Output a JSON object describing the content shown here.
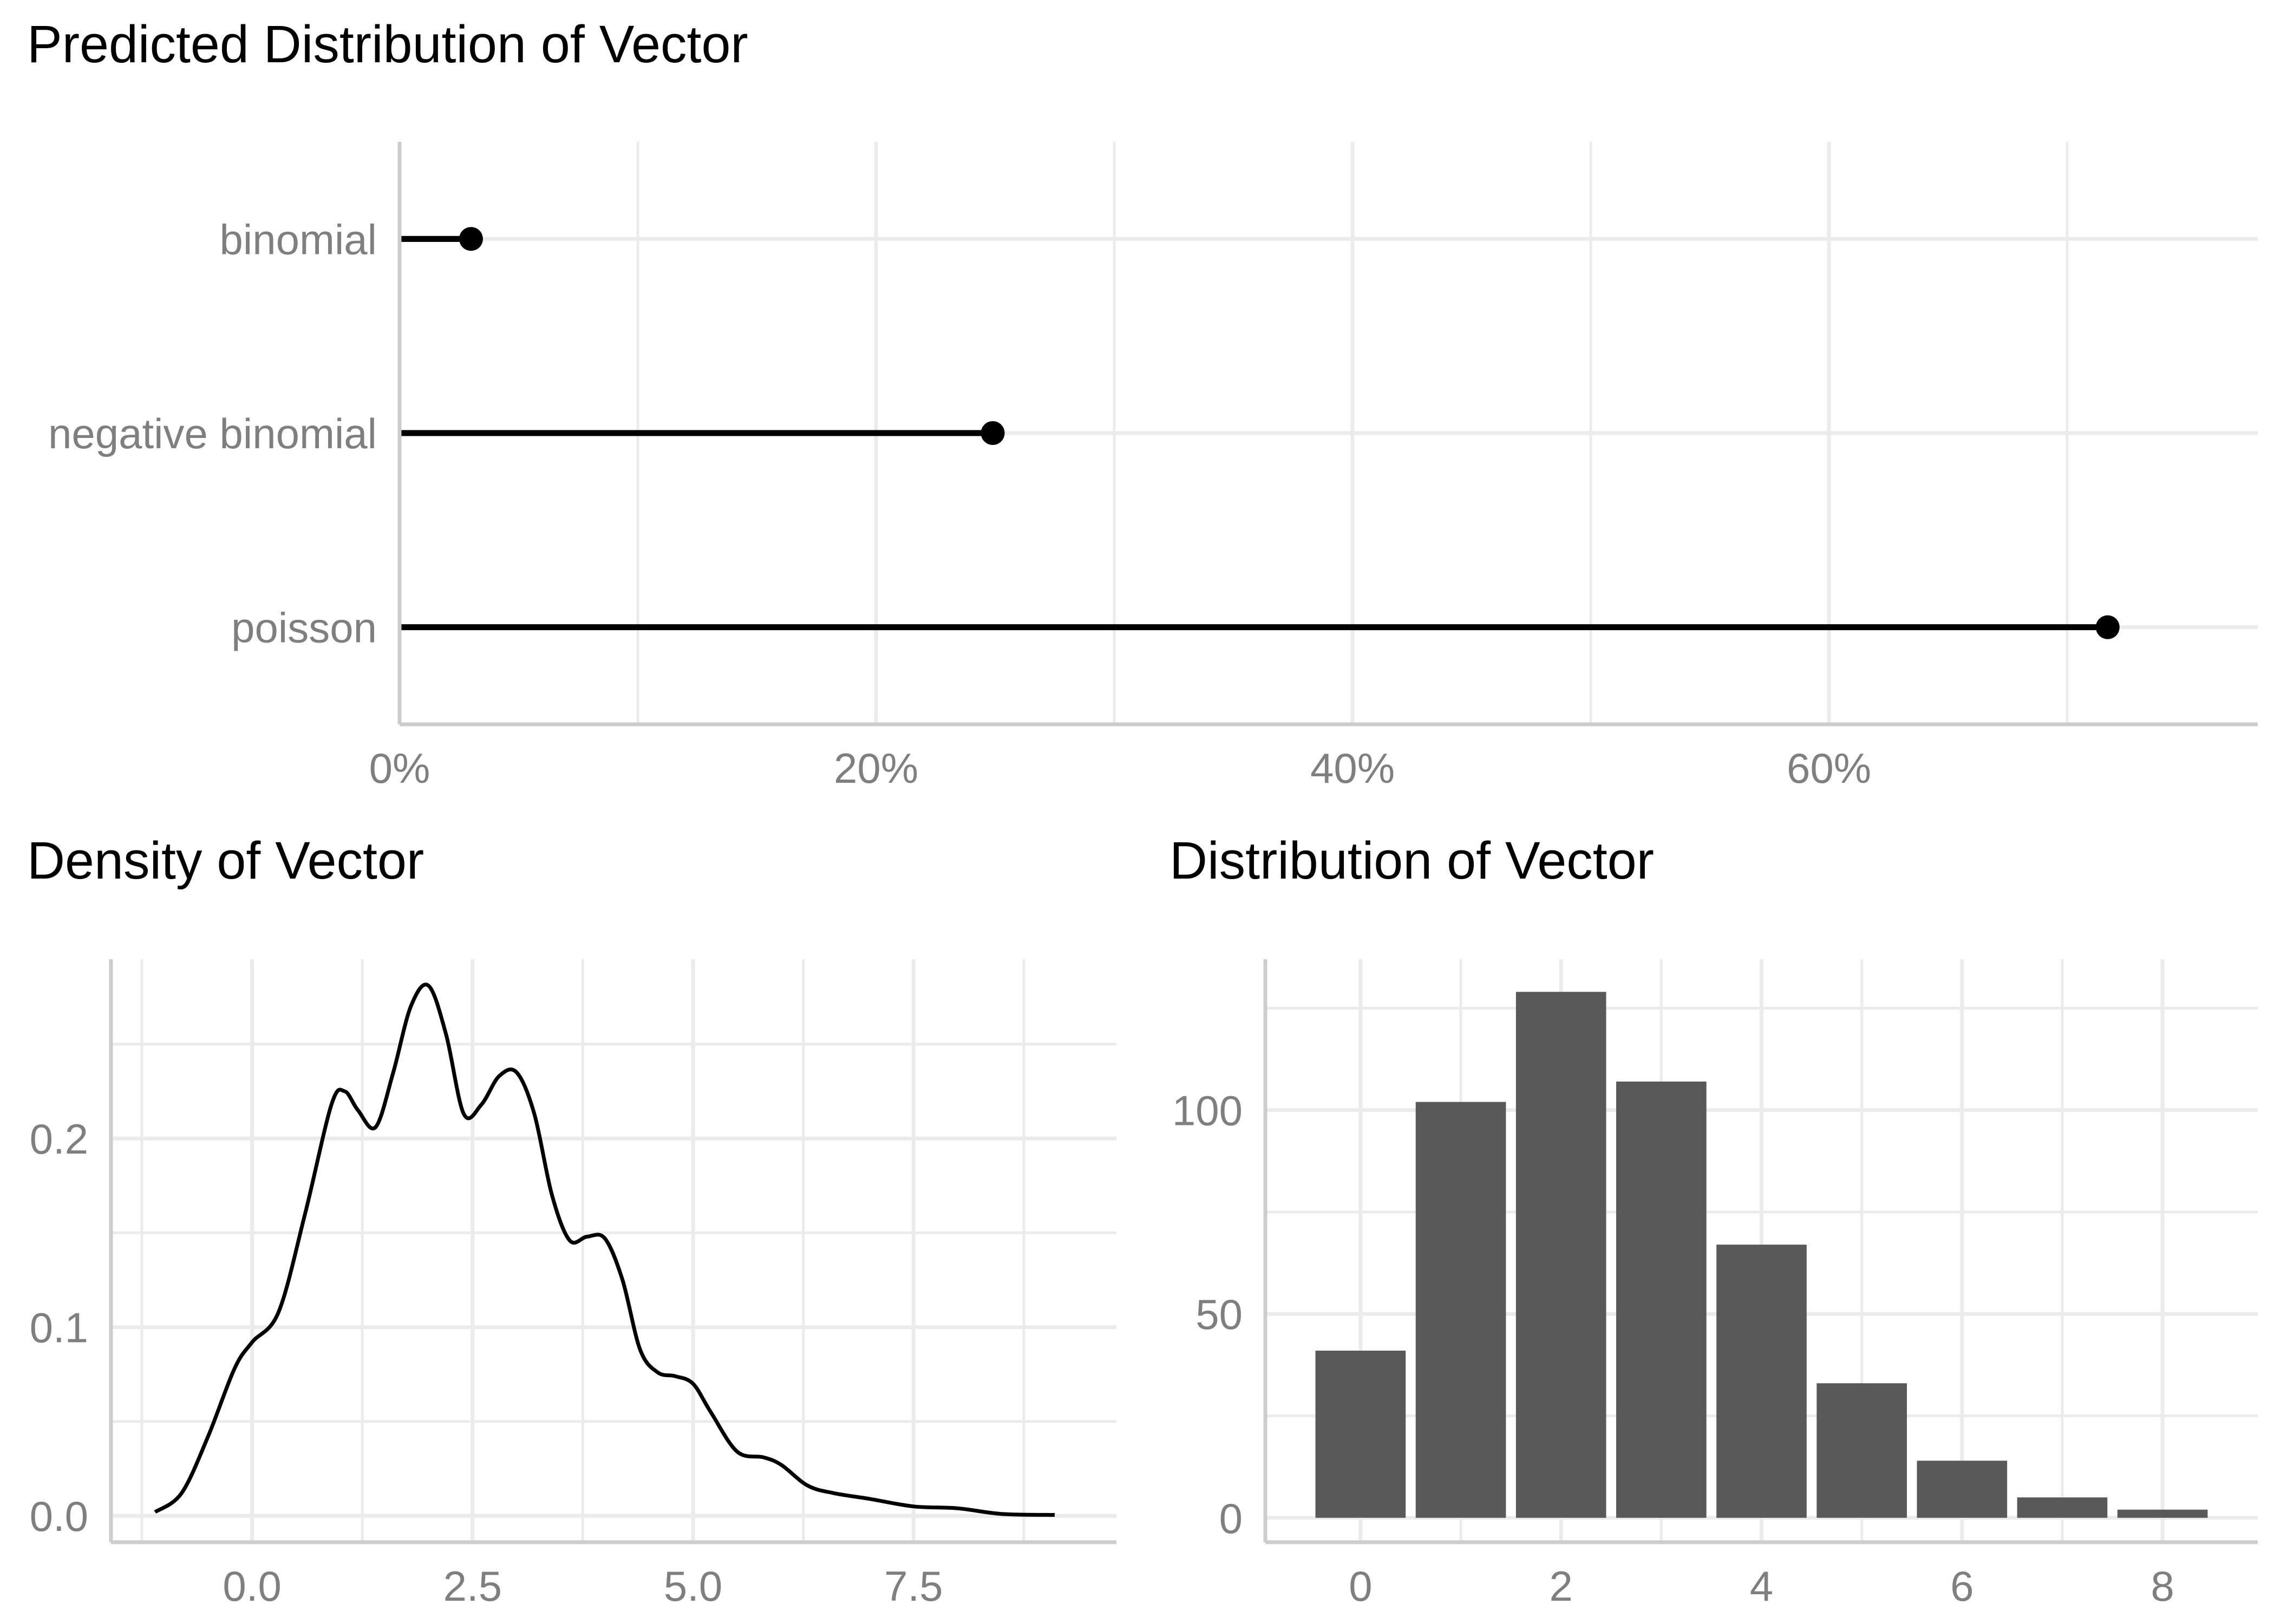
{
  "chart_data": [
    {
      "type": "lollipop",
      "title": "Predicted Distribution of Vector",
      "categories": [
        "binomial",
        "negative binomial",
        "poisson"
      ],
      "values": [
        0.03,
        0.249,
        0.717
      ],
      "xlim": [
        0,
        0.78
      ],
      "xticks": [
        0,
        0.2,
        0.4,
        0.6
      ],
      "xtick_labels": [
        "0%",
        "20%",
        "40%",
        "60%"
      ],
      "xlabel": "",
      "ylabel": ""
    },
    {
      "type": "line",
      "title": "Density of Vector",
      "x": [
        -1.1,
        -0.8,
        -0.5,
        -0.2,
        0.0,
        0.3,
        0.6,
        0.9,
        1.05,
        1.2,
        1.4,
        1.6,
        1.8,
        2.0,
        2.2,
        2.4,
        2.6,
        2.8,
        3.0,
        3.2,
        3.4,
        3.6,
        3.8,
        4.0,
        4.2,
        4.4,
        4.6,
        4.8,
        5.0,
        5.2,
        5.5,
        5.8,
        6.0,
        6.3,
        6.6,
        7.0,
        7.5,
        8.0,
        8.5,
        9.1
      ],
      "y": [
        0.002,
        0.012,
        0.042,
        0.078,
        0.092,
        0.108,
        0.16,
        0.218,
        0.225,
        0.215,
        0.206,
        0.235,
        0.27,
        0.281,
        0.255,
        0.213,
        0.218,
        0.233,
        0.235,
        0.213,
        0.17,
        0.146,
        0.148,
        0.147,
        0.125,
        0.088,
        0.076,
        0.074,
        0.07,
        0.055,
        0.034,
        0.031,
        0.027,
        0.016,
        0.012,
        0.009,
        0.005,
        0.004,
        0.001,
        0.0005
      ],
      "xlim": [
        -1.6,
        9.8
      ],
      "ylim": [
        -0.014,
        0.295
      ],
      "xticks": [
        0.0,
        2.5,
        5.0,
        7.5
      ],
      "xtick_labels": [
        "0.0",
        "2.5",
        "5.0",
        "7.5"
      ],
      "yticks": [
        0.0,
        0.1,
        0.2
      ],
      "ytick_labels": [
        "0.0",
        "0.1",
        "0.2"
      ],
      "xlabel": "",
      "ylabel": ""
    },
    {
      "type": "bar",
      "title": "Distribution of Vector",
      "categories": [
        0,
        1,
        2,
        3,
        4,
        5,
        6,
        7,
        8
      ],
      "values": [
        41,
        102,
        129,
        107,
        67,
        33,
        14,
        5,
        2
      ],
      "xlim": [
        -0.95,
        8.95
      ],
      "ylim": [
        -6,
        137
      ],
      "xticks": [
        0,
        2,
        4,
        6,
        8
      ],
      "xtick_labels": [
        "0",
        "2",
        "4",
        "6",
        "8"
      ],
      "yticks": [
        0,
        50,
        100
      ],
      "ytick_labels": [
        "0",
        "50",
        "100"
      ],
      "xlabel": "",
      "ylabel": ""
    }
  ]
}
